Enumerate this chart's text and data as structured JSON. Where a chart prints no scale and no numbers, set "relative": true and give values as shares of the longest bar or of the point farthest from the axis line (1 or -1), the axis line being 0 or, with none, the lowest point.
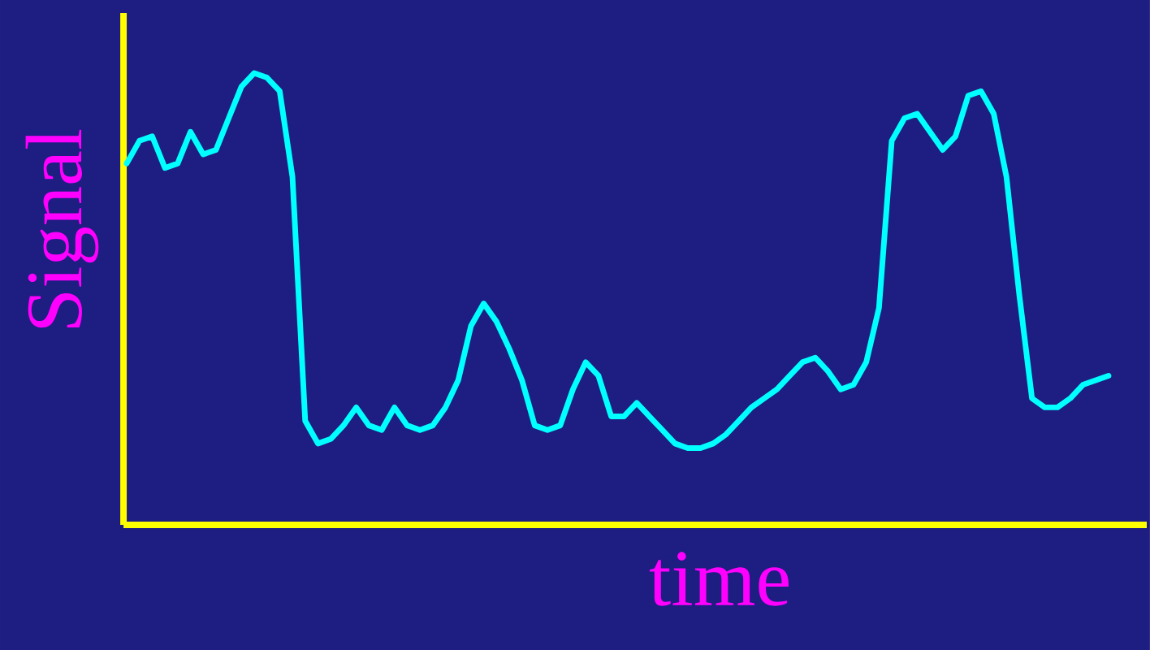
{
  "chart_data": {
    "type": "line",
    "relative": true,
    "xlabel": "time",
    "ylabel": "Signal",
    "color": "#00ffff",
    "categories": [
      null,
      null,
      null,
      null,
      null,
      null,
      null,
      null,
      null,
      null,
      null,
      null,
      null,
      null,
      null,
      null,
      null,
      null,
      null,
      null,
      null,
      null,
      null,
      null,
      null,
      null,
      null,
      null,
      null,
      null,
      null,
      null,
      null,
      null,
      null,
      null,
      null,
      null,
      null,
      null,
      null,
      null,
      null,
      null,
      null,
      null,
      null,
      null,
      null,
      null,
      null,
      null,
      null,
      null,
      null,
      null,
      null,
      null,
      null,
      null,
      null,
      null,
      null,
      null,
      null,
      null,
      null,
      null,
      null,
      null,
      null,
      null,
      null,
      null,
      null,
      null,
      null,
      null
    ],
    "values": [
      0.8,
      0.85,
      0.86,
      0.79,
      0.8,
      0.87,
      0.82,
      0.83,
      0.9,
      0.97,
      1.0,
      0.99,
      0.96,
      0.77,
      0.23,
      0.18,
      0.19,
      0.22,
      0.26,
      0.22,
      0.21,
      0.26,
      0.22,
      0.21,
      0.22,
      0.26,
      0.32,
      0.44,
      0.49,
      0.45,
      0.39,
      0.32,
      0.22,
      0.21,
      0.22,
      0.3,
      0.36,
      0.33,
      0.24,
      0.24,
      0.27,
      0.24,
      0.21,
      0.18,
      0.17,
      0.17,
      0.18,
      0.2,
      0.23,
      0.26,
      0.28,
      0.3,
      0.33,
      0.36,
      0.37,
      0.34,
      0.3,
      0.31,
      0.36,
      0.48,
      0.85,
      0.9,
      0.91,
      0.87,
      0.83,
      0.86,
      0.95,
      0.96,
      0.91,
      0.77,
      0.51,
      0.28,
      0.26,
      0.26,
      0.28,
      0.31,
      0.32,
      0.33
    ]
  }
}
